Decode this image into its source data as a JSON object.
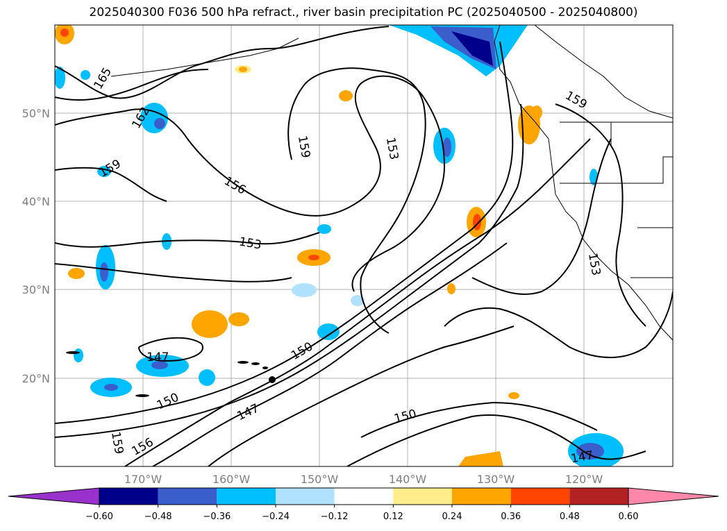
{
  "title": "2025040300 F036 500 hPa refract., river basin precipitation PC (2025040500 - 2025040800)",
  "lat_labels": [
    "50°N",
    "40°N",
    "30°N",
    "20°N"
  ],
  "lon_labels": [
    "170°W",
    "160°W",
    "150°W",
    "140°W",
    "130°W",
    "120°W"
  ],
  "contour_labels": [
    "165",
    "162",
    "159",
    "159",
    "156",
    "153",
    "153",
    "159",
    "153",
    "150",
    "150",
    "147",
    "147",
    "150",
    "159",
    "156",
    "147"
  ],
  "colorbar": {
    "ticks": [
      "−0.60",
      "−0.48",
      "−0.36",
      "−0.24",
      "−0.12",
      "0.12",
      "0.24",
      "0.36",
      "0.48",
      "0.60"
    ],
    "colors": [
      "#9932cc",
      "#00008b",
      "#3a5fcd",
      "#00bfff",
      "#b0e2ff",
      "#ffffff",
      "#ffec8b",
      "#ffa500",
      "#ff4500",
      "#b22222",
      "#ff88aa"
    ]
  }
}
